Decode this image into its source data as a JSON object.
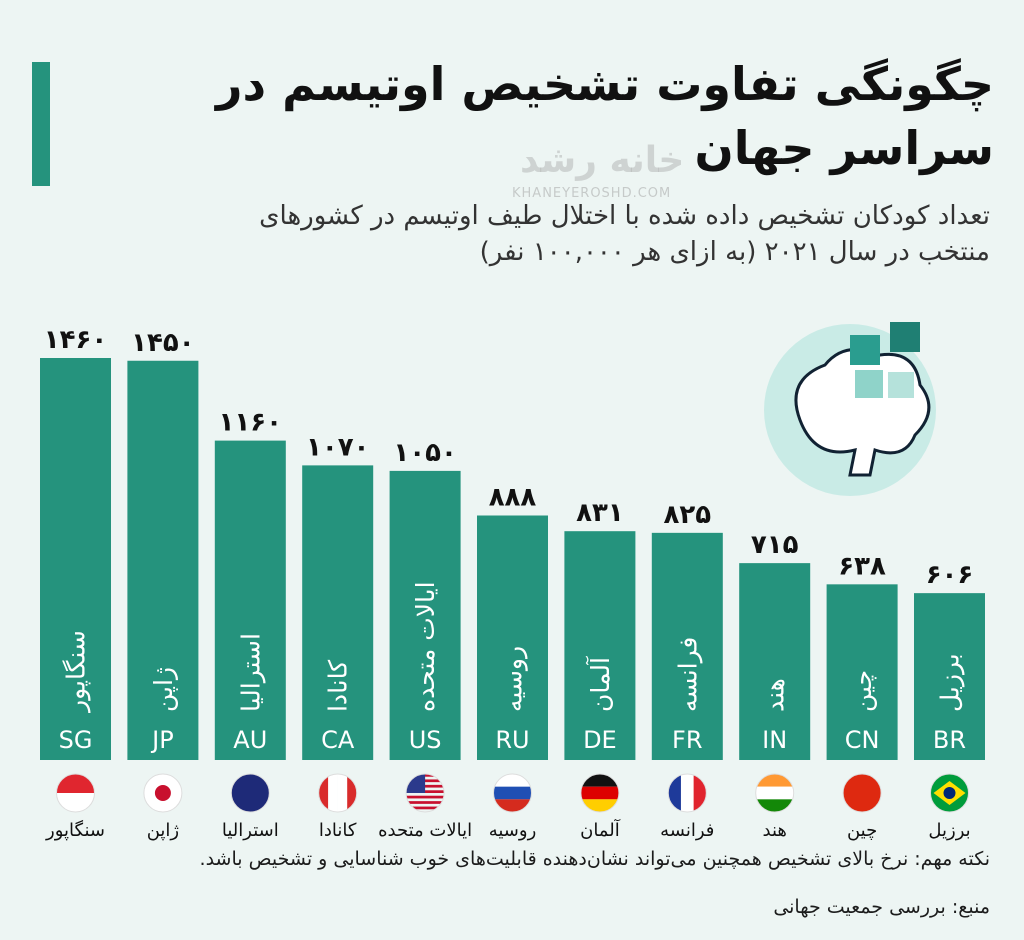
{
  "chart_data": {
    "type": "bar",
    "title": "چگونگی تفاوت تشخیص اوتیسم در سراسر جهان",
    "subtitle": "تعداد کودکان تشخیص داده شده با اختلال طیف اوتیسم در کشورهای منتخب در سال ۲۰۲۱ (به ازای هر ۱۰۰,۰۰۰ نفر)",
    "categories": [
      "SG",
      "JP",
      "AU",
      "CA",
      "US",
      "RU",
      "DE",
      "FR",
      "IN",
      "CN",
      "BR"
    ],
    "names": [
      "سنگاپور",
      "ژاپن",
      "استرالیا",
      "کانادا",
      "ایالات متحده",
      "روسیه",
      "آلمان",
      "فرانسه",
      "هند",
      "چین",
      "برزیل"
    ],
    "values": [
      1460,
      1450,
      1160,
      1070,
      1050,
      888,
      831,
      825,
      715,
      638,
      606
    ],
    "value_labels": [
      "۱۴۶۰",
      "۱۴۵۰",
      "۱۱۶۰",
      "۱۰۷۰",
      "۱۰۵۰",
      "۸۸۸",
      "۸۳۱",
      "۸۲۵",
      "۷۱۵",
      "۶۳۸",
      "۶۰۶"
    ],
    "color": "#25937d",
    "note": "نکته مهم: نرخ بالای تشخیص همچنین می‌تواند نشان‌دهنده قابلیت‌های خوب شناسایی و تشخیص باشد.",
    "source": "منبع: بررسی جمعیت جهانی",
    "watermark": {
      "name": "خانه رشد",
      "url": "KHANEYEROSHD.COM"
    }
  }
}
